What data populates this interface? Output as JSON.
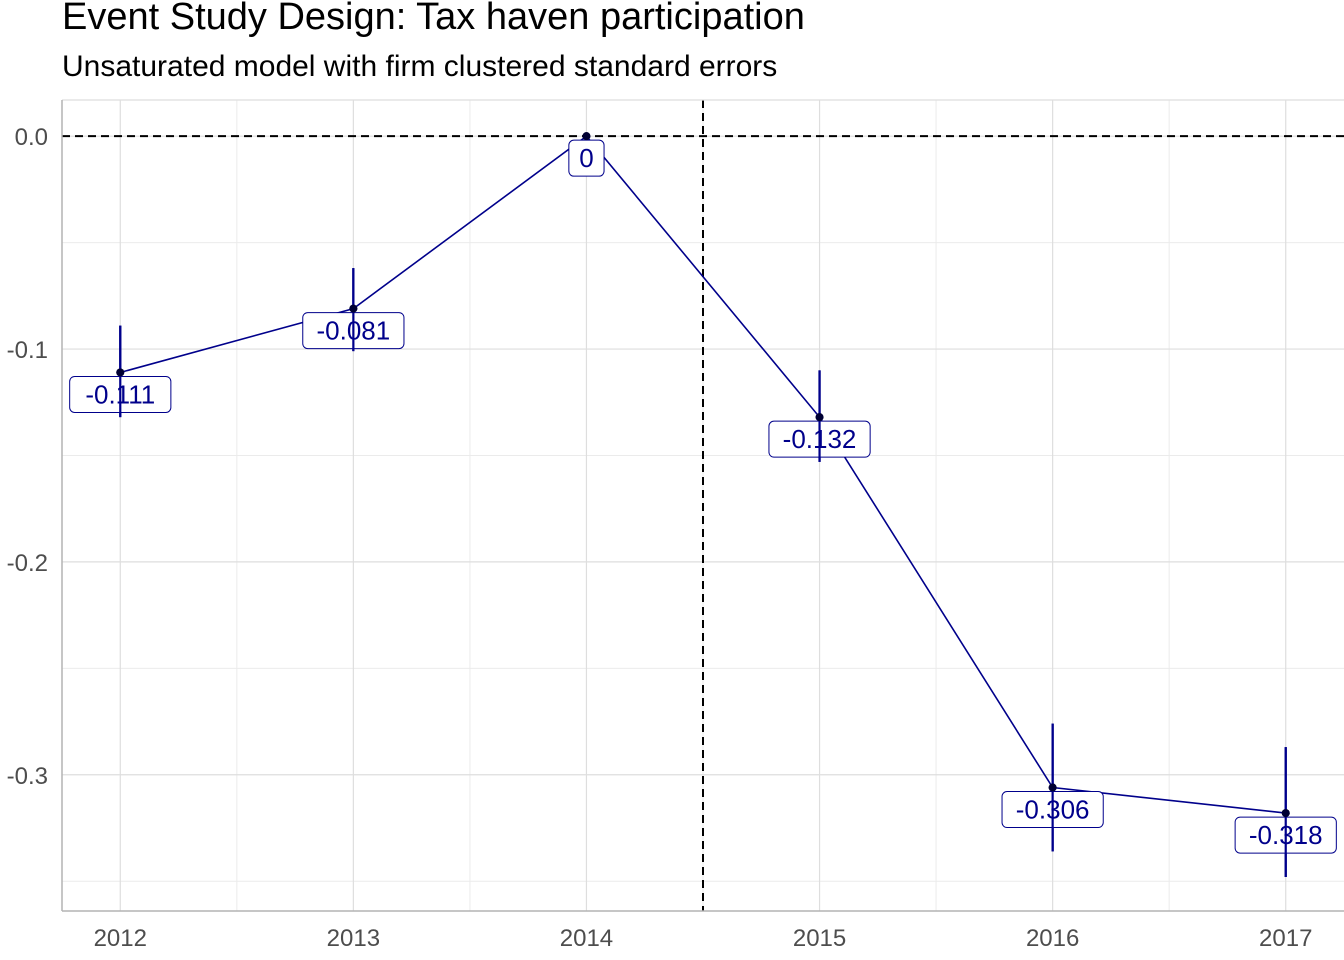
{
  "chart_data": {
    "type": "line",
    "title": "Event Study Design: Tax haven participation",
    "subtitle": "Unsaturated model with firm clustered standard errors",
    "xlabel": "",
    "ylabel": "",
    "x": [
      2012,
      2013,
      2014,
      2015,
      2016,
      2017
    ],
    "series": [
      {
        "values": [
          -0.111,
          -0.081,
          0,
          -0.132,
          -0.306,
          -0.318
        ],
        "ci_low": [
          -0.132,
          -0.101,
          0,
          -0.153,
          -0.336,
          -0.348
        ],
        "ci_high": [
          -0.089,
          -0.062,
          0,
          -0.11,
          -0.276,
          -0.287
        ],
        "labels": [
          "-0.111",
          "-0.081",
          "0",
          "-0.132",
          "-0.306",
          "-0.318"
        ],
        "color": "#00008b"
      }
    ],
    "x_ticks": [
      "2012",
      "2013",
      "2014",
      "2015",
      "2016",
      "2017"
    ],
    "y_ticks": [
      "0.0",
      "-0.1",
      "-0.2",
      "-0.3"
    ],
    "y_tick_values": [
      0,
      -0.1,
      -0.2,
      -0.3
    ],
    "xlim": [
      2011.75,
      2017.25
    ],
    "ylim": [
      -0.364,
      0.017
    ],
    "reference_lines": {
      "hline_y": 0,
      "vline_x": 2014.5
    },
    "grid": true,
    "legend": "none"
  }
}
